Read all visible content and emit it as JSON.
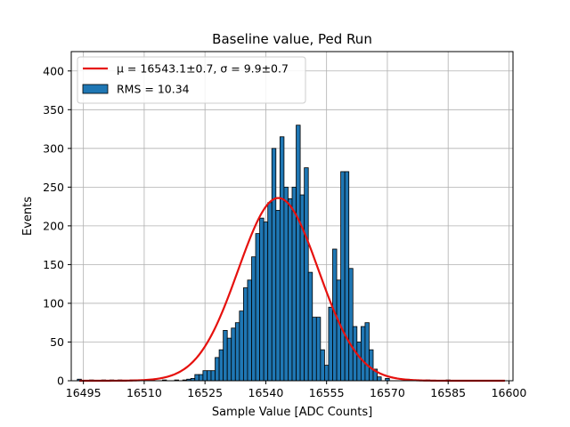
{
  "chart_data": {
    "type": "bar",
    "title": "Baseline value, Ped Run",
    "xlabel": "Sample Value [ADC Counts]",
    "ylabel": "Events",
    "xlim": [
      16492,
      16601
    ],
    "ylim": [
      0,
      425
    ],
    "xticks": [
      16495,
      16510,
      16525,
      16540,
      16555,
      16570,
      16585,
      16600
    ],
    "yticks": [
      0,
      50,
      100,
      150,
      200,
      250,
      300,
      350,
      400
    ],
    "grid": true,
    "legend_position": "top-left",
    "legend": {
      "fit_label": "μ = 16543.1±0.7, σ = 9.9±0.7",
      "hist_label": "RMS = 10.34"
    },
    "series": [
      {
        "kind": "histogram",
        "color": "#1f77b4",
        "edge_color": "#000000",
        "bin_width": 1,
        "x": [
          16494,
          16497,
          16500,
          16502,
          16504,
          16507,
          16510,
          16512,
          16515,
          16518,
          16520,
          16521,
          16522,
          16523,
          16524,
          16525,
          16526,
          16527,
          16528,
          16529,
          16530,
          16531,
          16532,
          16533,
          16534,
          16535,
          16536,
          16537,
          16538,
          16539,
          16540,
          16541,
          16542,
          16543,
          16544,
          16545,
          16546,
          16547,
          16548,
          16549,
          16550,
          16551,
          16552,
          16553,
          16554,
          16555,
          16556,
          16557,
          16558,
          16559,
          16560,
          16561,
          16562,
          16563,
          16564,
          16565,
          16566,
          16567,
          16568,
          16570,
          16575,
          16580,
          16585
        ],
        "values": [
          2,
          1,
          1,
          1,
          1,
          1,
          1,
          1,
          1,
          1,
          1,
          2,
          3,
          8,
          8,
          13,
          13,
          13,
          30,
          40,
          65,
          55,
          68,
          75,
          90,
          120,
          130,
          160,
          190,
          210,
          205,
          230,
          300,
          220,
          315,
          250,
          235,
          250,
          330,
          240,
          275,
          140,
          82,
          82,
          40,
          20,
          95,
          170,
          130,
          270,
          270,
          145,
          70,
          50,
          70,
          75,
          40,
          15,
          5,
          3,
          2,
          1,
          1
        ]
      },
      {
        "kind": "gaussian-fit",
        "color": "#e6110e",
        "mu": 16543.1,
        "sigma": 9.9,
        "amplitude": 236,
        "x_range": [
          16494,
          16599
        ]
      }
    ]
  }
}
